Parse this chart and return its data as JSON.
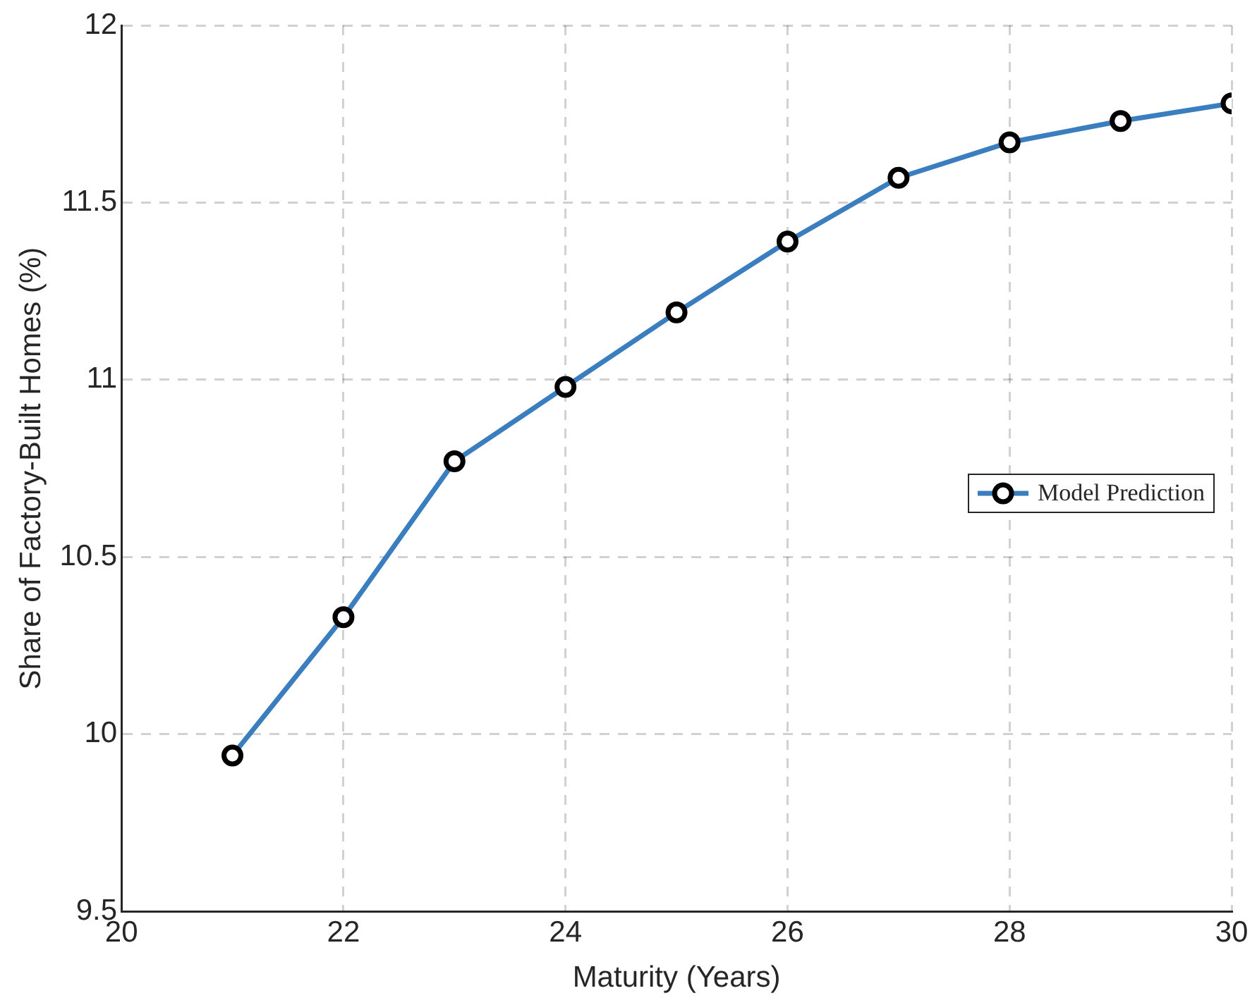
{
  "chart_data": {
    "type": "line",
    "xlabel": "Maturity (Years)",
    "ylabel": "Share of Factory-Built Homes (%)",
    "x": [
      21,
      22,
      23,
      24,
      25,
      26,
      27,
      28,
      29,
      30
    ],
    "series": [
      {
        "name": "Model Prediction",
        "color": "#3a7ebf",
        "values": [
          9.94,
          10.33,
          10.77,
          10.98,
          11.19,
          11.39,
          11.57,
          11.67,
          11.73,
          11.78
        ]
      }
    ],
    "xlim": [
      20,
      30
    ],
    "xticks": [
      20,
      22,
      24,
      26,
      28,
      30
    ],
    "ylim": [
      9.5,
      12
    ],
    "yticks": [
      9.5,
      10,
      10.5,
      11,
      11.5,
      12
    ],
    "grid": true,
    "legend": "right",
    "marker": "circle",
    "line_style": "solid"
  }
}
